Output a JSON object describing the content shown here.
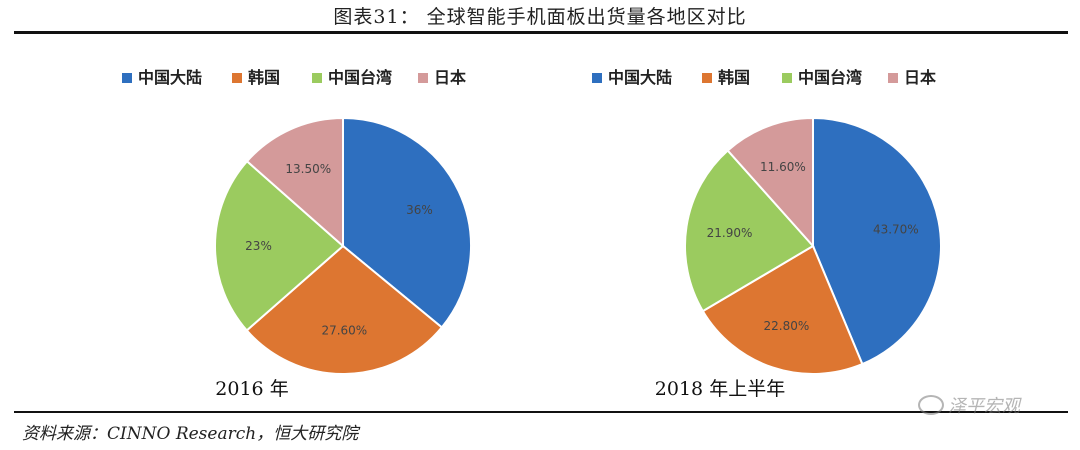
{
  "figure": {
    "title": "图表31： 全球智能手机面板出货量各地区对比",
    "source": "资料来源：CINNO Research，恒大研究院",
    "watermark": "泽平宏观"
  },
  "colors": {
    "中国大陆": "#2E6FBF",
    "韩国": "#DD7631",
    "中国台湾": "#9BCB5F",
    "日本": "#D49A9A"
  },
  "chart_data": [
    {
      "type": "pie",
      "title": "2016 年",
      "legend": [
        "中国大陆",
        "韩国",
        "中国台湾",
        "日本"
      ],
      "legend_position": "top",
      "slices": [
        {
          "name": "中国大陆",
          "value": 36,
          "label": "36%"
        },
        {
          "name": "韩国",
          "value": 27.6,
          "label": "27.60%"
        },
        {
          "name": "中国台湾",
          "value": 23,
          "label": "23%"
        },
        {
          "name": "日本",
          "value": 13.5,
          "label": "13.50%"
        }
      ]
    },
    {
      "type": "pie",
      "title": "2018 年上半年",
      "legend": [
        "中国大陆",
        "韩国",
        "中国台湾",
        "日本"
      ],
      "legend_position": "top",
      "slices": [
        {
          "name": "中国大陆",
          "value": 43.7,
          "label": "43.70%"
        },
        {
          "name": "韩国",
          "value": 22.8,
          "label": "22.80%"
        },
        {
          "name": "中国台湾",
          "value": 21.9,
          "label": "21.90%"
        },
        {
          "name": "日本",
          "value": 11.6,
          "label": "11.60%"
        }
      ]
    }
  ]
}
